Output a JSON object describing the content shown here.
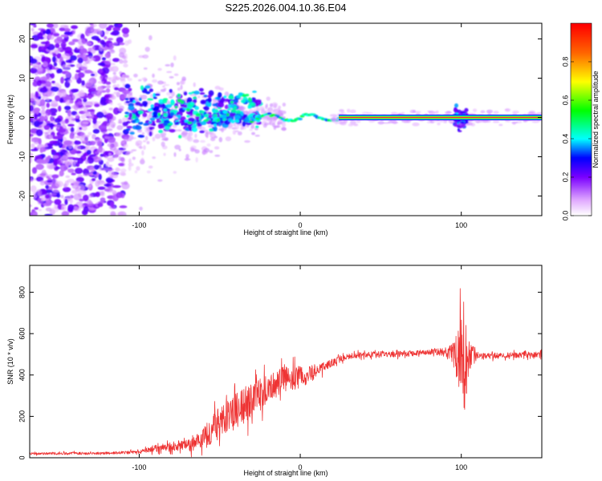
{
  "colors": {
    "background": "#ffffff",
    "axis": "#000000",
    "snr_line": "#ee3333",
    "spectrogram_low": "#7a2cf0",
    "ridge": "#ee3344"
  },
  "chart_data": [
    {
      "id": "spectrogram",
      "type": "heatmap",
      "title": "S225.2026.004.10.36.E04",
      "xlabel": "Height of straight line (km)",
      "ylabel": "Frequency (Hz)",
      "xlim": [
        -168,
        150
      ],
      "ylim": [
        -25,
        24
      ],
      "xticks": [
        -100,
        0,
        100
      ],
      "xtick_labels": [
        "-100",
        "0",
        "100"
      ],
      "yticks": [
        -20,
        -10,
        0,
        10,
        20
      ],
      "ytick_labels": [
        "-20",
        "-10",
        "0",
        "10",
        "20"
      ],
      "grid": false,
      "ridge": {
        "x_start": 24,
        "x_end": 150,
        "frequency": 0,
        "note": "continuous high-amplitude band near 0 Hz; broadband noise at heights below -70 km; disturbance near 100 km"
      },
      "colorbar": {
        "label": "Normalized spectral amplitude",
        "range": [
          0,
          1
        ],
        "ticks": [
          0.0,
          0.2,
          0.4,
          0.6,
          0.8
        ],
        "tick_labels": [
          "0.0",
          "0.2",
          "0.4",
          "0.6",
          "0.8"
        ],
        "stops": [
          {
            "value": 0.0,
            "color": "#ffffff"
          },
          {
            "value": 0.08,
            "color": "#e0a8ff"
          },
          {
            "value": 0.2,
            "color": "#7a00ff"
          },
          {
            "value": 0.3,
            "color": "#0000ff"
          },
          {
            "value": 0.4,
            "color": "#00ffff"
          },
          {
            "value": 0.55,
            "color": "#00ff00"
          },
          {
            "value": 0.7,
            "color": "#ffff00"
          },
          {
            "value": 0.85,
            "color": "#ff6600"
          },
          {
            "value": 1.0,
            "color": "#ff0000"
          }
        ]
      }
    },
    {
      "id": "snr",
      "type": "line",
      "title": "",
      "xlabel": "Height of straight line (km)",
      "ylabel": "SNR (10 * v/v)",
      "xlim": [
        -168,
        150
      ],
      "ylim": [
        0,
        930
      ],
      "xticks": [
        -100,
        0,
        100
      ],
      "xtick_labels": [
        "-100",
        "0",
        "100"
      ],
      "yticks": [
        0,
        200,
        400,
        600,
        800
      ],
      "ytick_labels": [
        "0",
        "200",
        "400",
        "600",
        "800"
      ],
      "grid": false,
      "series": [
        {
          "name": "SNR",
          "color": "#ee3333",
          "envelope": {
            "x": [
              -168,
              -120,
              -100,
              -90,
              -80,
              -70,
              -60,
              -50,
              -40,
              -30,
              -20,
              -10,
              0,
              10,
              20,
              30,
              40,
              60,
              80,
              90,
              95,
              98,
              100,
              102,
              104,
              106,
              110,
              130,
              150
            ],
            "base": [
              20,
              22,
              28,
              45,
              55,
              60,
              95,
              170,
              230,
              270,
              340,
              380,
              390,
              420,
              460,
              490,
              500,
              500,
              510,
              510,
              500,
              480,
              450,
              460,
              480,
              500,
              490,
              495,
              500
            ],
            "amp": [
              10,
              12,
              15,
              30,
              45,
              55,
              100,
              150,
              160,
              170,
              130,
              110,
              100,
              60,
              35,
              25,
              25,
              25,
              25,
              40,
              100,
              300,
              420,
              450,
              300,
              120,
              30,
              25,
              25
            ]
          }
        }
      ]
    }
  ]
}
